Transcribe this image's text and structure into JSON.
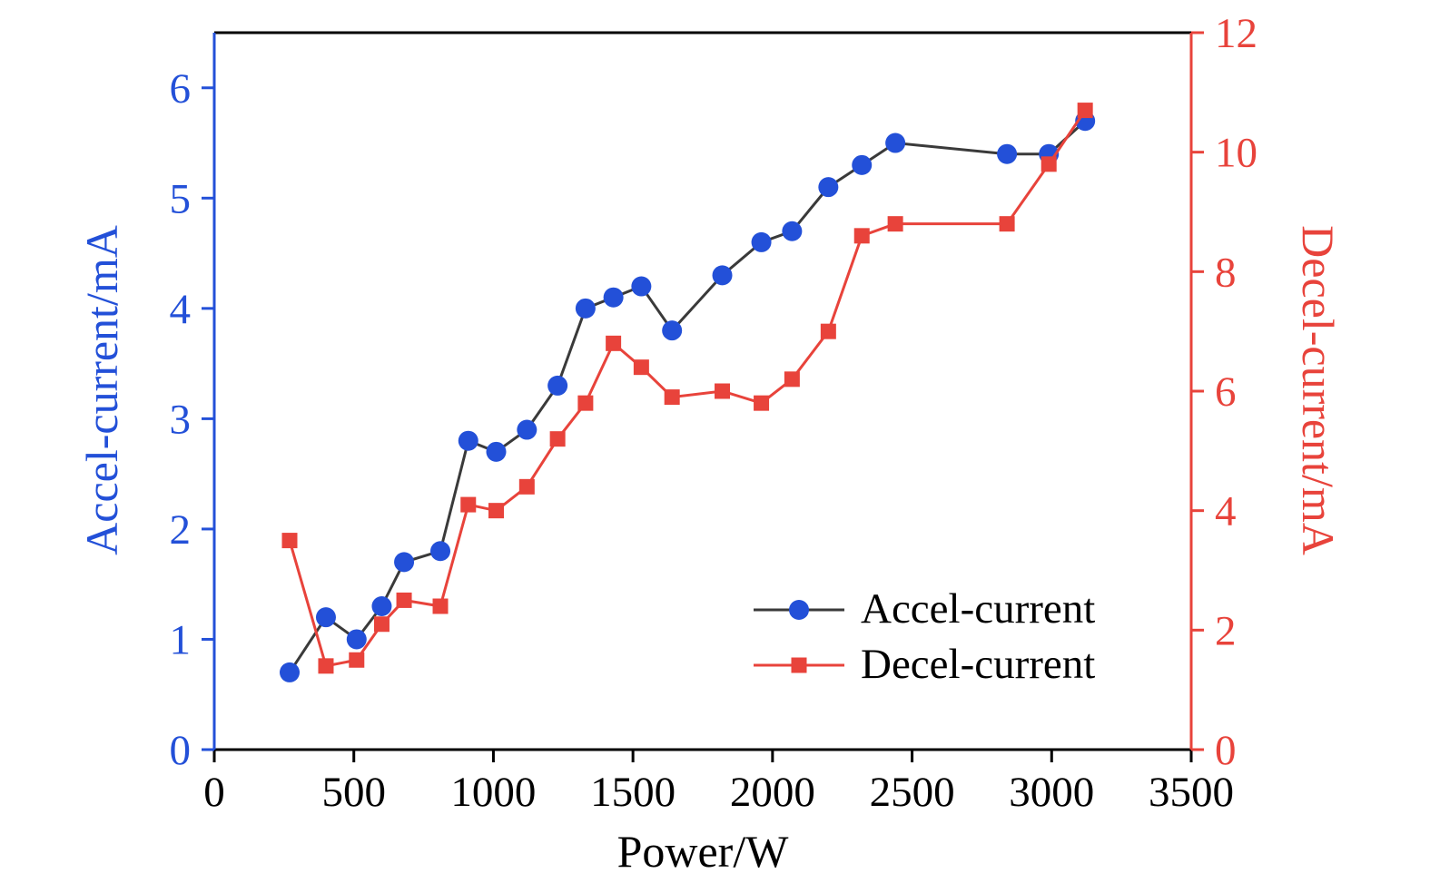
{
  "chart_data": {
    "type": "line",
    "title": "",
    "xlabel": "Power/W",
    "xlim": [
      0,
      3500
    ],
    "x_ticks": [
      0,
      500,
      1000,
      1500,
      2000,
      2500,
      3000,
      3500
    ],
    "left_axis": {
      "label": "Accel-current/mA",
      "ticks": [
        0,
        1,
        2,
        3,
        4,
        5,
        6
      ],
      "lim": [
        0,
        6.5
      ],
      "color": "#2350d8"
    },
    "right_axis": {
      "label": "Decel-current/mA",
      "ticks": [
        0,
        2,
        4,
        6,
        8,
        10,
        12
      ],
      "lim": [
        0,
        12
      ],
      "color": "#e8433b"
    },
    "x": [
      270,
      400,
      510,
      600,
      680,
      810,
      910,
      1010,
      1120,
      1230,
      1330,
      1430,
      1530,
      1640,
      1820,
      1960,
      2070,
      2200,
      2320,
      2440,
      2840,
      2990,
      3120
    ],
    "series": [
      {
        "name": "Accel-current",
        "axis": "left",
        "marker": "circle",
        "marker_color": "#2350d8",
        "line_color": "#3a3a3a",
        "values": [
          0.7,
          1.2,
          1.0,
          1.3,
          1.7,
          1.8,
          2.8,
          2.7,
          2.9,
          3.3,
          4.0,
          4.1,
          4.2,
          3.8,
          4.3,
          4.6,
          4.7,
          5.1,
          5.3,
          5.5,
          5.4,
          5.4,
          5.7
        ]
      },
      {
        "name": "Decel-current",
        "axis": "right",
        "marker": "square",
        "marker_color": "#e8433b",
        "line_color": "#e8433b",
        "values": [
          3.5,
          1.4,
          1.5,
          2.1,
          2.5,
          2.4,
          4.1,
          4.0,
          4.4,
          5.2,
          5.8,
          6.8,
          6.4,
          5.9,
          6.0,
          5.8,
          6.2,
          7.0,
          8.6,
          8.8,
          8.8,
          9.8,
          10.7
        ]
      }
    ],
    "legend": {
      "position": "lower right",
      "entries": [
        "Accel-current",
        "Decel-current"
      ]
    }
  }
}
